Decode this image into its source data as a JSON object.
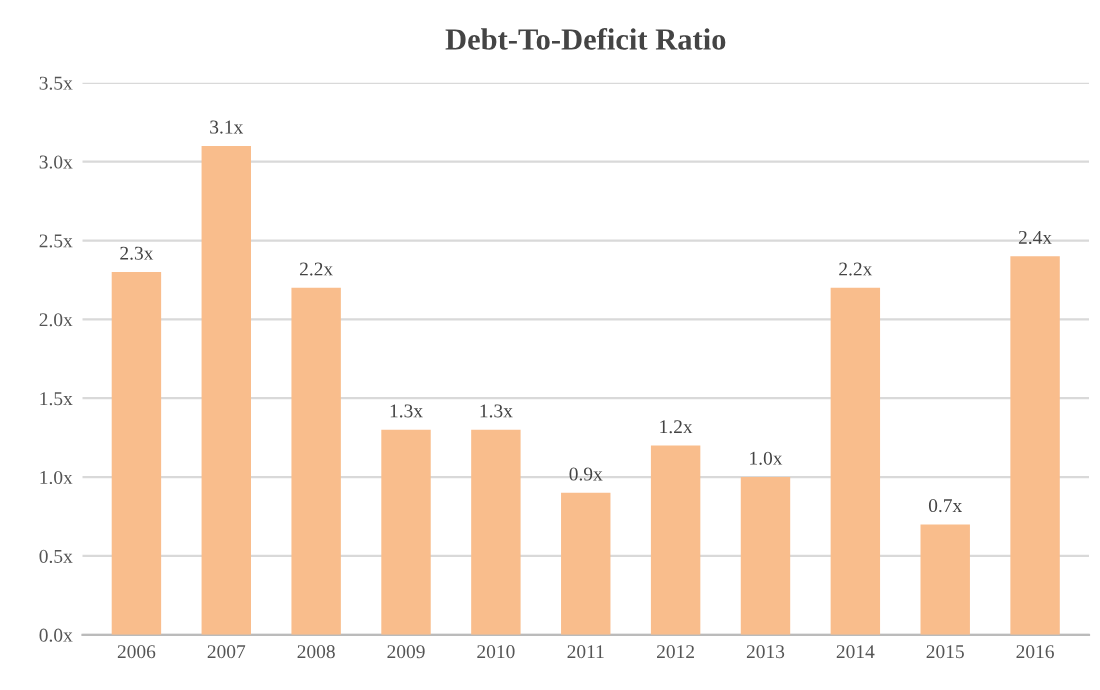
{
  "chart_data": {
    "type": "bar",
    "title": "Debt-To-Deficit Ratio",
    "categories": [
      "2006",
      "2007",
      "2008",
      "2009",
      "2010",
      "2011",
      "2012",
      "2013",
      "2014",
      "2015",
      "2016"
    ],
    "values": [
      2.3,
      3.1,
      2.2,
      1.3,
      1.3,
      0.9,
      1.2,
      1.0,
      2.2,
      0.7,
      2.4
    ],
    "value_labels": [
      "2.3x",
      "3.1x",
      "2.2x",
      "1.3x",
      "1.3x",
      "0.9x",
      "1.2x",
      "1.0x",
      "2.2x",
      "0.7x",
      "2.4x"
    ],
    "color": "#f9bd8c",
    "ylim": [
      0,
      3.5
    ],
    "yticks": [
      {
        "value": 0,
        "label": "0.0x"
      },
      {
        "value": 0.5,
        "label": "0.5x"
      },
      {
        "value": 1.0,
        "label": "1.0x"
      },
      {
        "value": 1.5,
        "label": "1.5x"
      },
      {
        "value": 2.0,
        "label": "2.0x"
      },
      {
        "value": 2.5,
        "label": "2.5x"
      },
      {
        "value": 3.0,
        "label": "3.0x"
      },
      {
        "value": 3.5,
        "label": "3.5x"
      }
    ],
    "grid": "y"
  }
}
